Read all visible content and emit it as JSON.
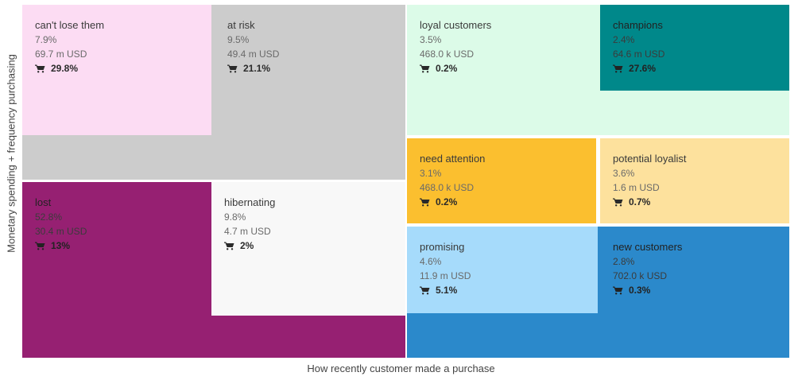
{
  "chart_data": {
    "type": "treemap",
    "xlabel": "How recently customer made a purchase",
    "ylabel": "Monetary spending + frequency purchasing",
    "segments": [
      {
        "id": "cant-lose-them",
        "name": "can't lose them",
        "customers_pct": "7.9%",
        "revenue": "69.7 m USD",
        "share": "29.8%",
        "color": "#fcdcf3"
      },
      {
        "id": "at-risk",
        "name": "at risk",
        "customers_pct": "9.5%",
        "revenue": "49.4 m USD",
        "share": "21.1%",
        "color": "#cccccc"
      },
      {
        "id": "loyal-customers",
        "name": "loyal customers",
        "customers_pct": "3.5%",
        "revenue": "468.0 k USD",
        "share": "0.2%",
        "color": "#dcfbe8"
      },
      {
        "id": "champions",
        "name": "champions",
        "customers_pct": "2.4%",
        "revenue": "64.6 m USD",
        "share": "27.6%",
        "color": "#00888a"
      },
      {
        "id": "need-attention",
        "name": "need attention",
        "customers_pct": "3.1%",
        "revenue": "468.0 k USD",
        "share": "0.2%",
        "color": "#fbbf2f"
      },
      {
        "id": "potential-loyalist",
        "name": "potential loyalist",
        "customers_pct": "3.6%",
        "revenue": "1.6 m USD",
        "share": "0.7%",
        "color": "#fde19d"
      },
      {
        "id": "lost",
        "name": "lost",
        "customers_pct": "52.8%",
        "revenue": "30.4 m USD",
        "share": "13%",
        "color": "#962072"
      },
      {
        "id": "hibernating",
        "name": "hibernating",
        "customers_pct": "9.8%",
        "revenue": "4.7 m USD",
        "share": "2%",
        "color": "#f8f8f8"
      },
      {
        "id": "promising",
        "name": "promising",
        "customers_pct": "4.6%",
        "revenue": "11.9 m USD",
        "share": "5.1%",
        "color": "#a6dbfb"
      },
      {
        "id": "new-customers",
        "name": "new customers",
        "customers_pct": "2.8%",
        "revenue": "702.0 k USD",
        "share": "0.3%",
        "color": "#2b89cb"
      }
    ]
  }
}
